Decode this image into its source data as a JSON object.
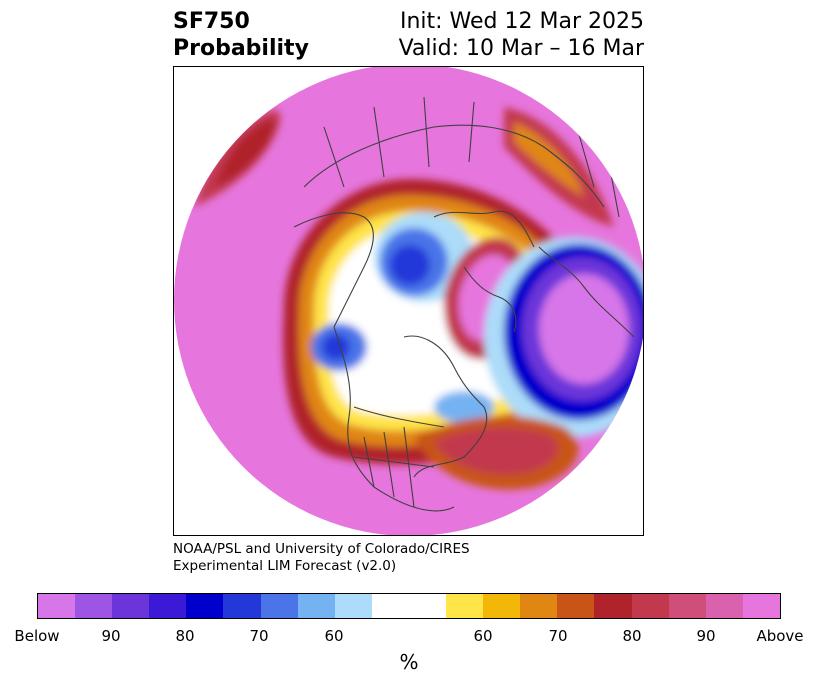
{
  "header": {
    "variable": "SF750",
    "product": "Probability",
    "init": "Init: Wed 12 Mar 2025",
    "valid": "Valid: 10 Mar – 16 Mar"
  },
  "credit": {
    "line1": "NOAA/PSL and University of Colorado/CIRES",
    "line2": "Experimental LIM Forecast (v2.0)"
  },
  "colorbar": {
    "unit": "%",
    "colors": [
      "#d776e8",
      "#9e55e3",
      "#6c35d9",
      "#3b19d6",
      "#0000cc",
      "#2438d9",
      "#4a74e8",
      "#74b2f2",
      "#acdcf9",
      "#ffffff",
      "#ffe44a",
      "#f3b708",
      "#e08612",
      "#c85418",
      "#b0232a",
      "#c2394e",
      "#cf4e7a",
      "#da61ad",
      "#e676dd"
    ],
    "tick_labels": [
      "Below",
      "90",
      "80",
      "70",
      "60",
      "60",
      "70",
      "80",
      "90",
      "Above"
    ]
  },
  "map": {
    "projection": "north polar stereographic",
    "background_color": "#e676dd",
    "features": [
      "coastlines",
      "country borders",
      "US state borders"
    ]
  }
}
